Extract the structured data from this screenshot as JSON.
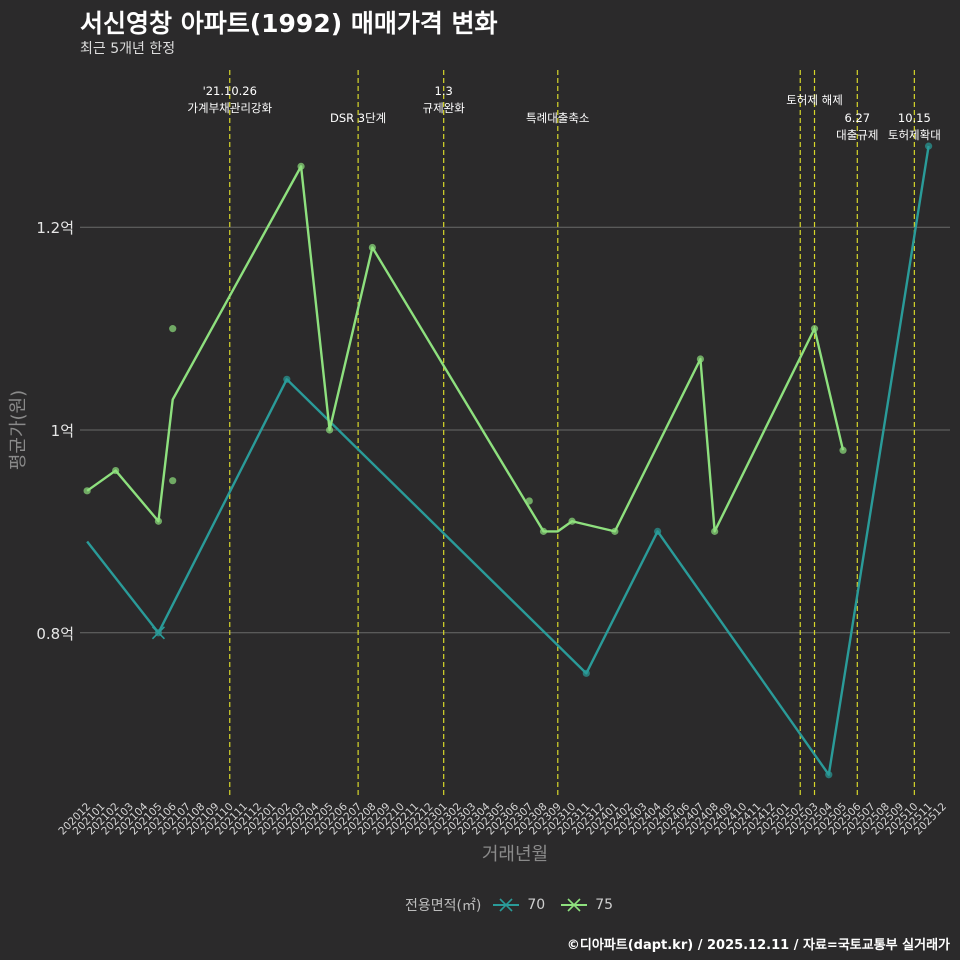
{
  "chart_data": {
    "type": "line",
    "title": "서신영창 아파트(1992) 매매가격 변화",
    "subtitle": "최근 5개년 한정",
    "xlabel": "거래년월",
    "ylabel": "평균가(원)",
    "caption": "©디아파트(dapt.kr) / 2025.12.11 / 자료=국토교통부 실거래가",
    "legend_title": "전용면적(㎡)",
    "legend_position": "bottom",
    "ylim": [
      0.64,
      1.36
    ],
    "y_ticks": [
      {
        "value": 0.8,
        "label": "0.8억"
      },
      {
        "value": 1.0,
        "label": "1억"
      },
      {
        "value": 1.2,
        "label": "1.2억"
      }
    ],
    "x_categories": [
      "202012",
      "202101",
      "202102",
      "202103",
      "202104",
      "202105",
      "202106",
      "202107",
      "202108",
      "202109",
      "202110",
      "202111",
      "202112",
      "202201",
      "202202",
      "202203",
      "202204",
      "202205",
      "202206",
      "202207",
      "202208",
      "202209",
      "202210",
      "202211",
      "202212",
      "202301",
      "202302",
      "202303",
      "202304",
      "202305",
      "202306",
      "202307",
      "202308",
      "202309",
      "202310",
      "202311",
      "202312",
      "202401",
      "202402",
      "202403",
      "202404",
      "202405",
      "202406",
      "202407",
      "202408",
      "202409",
      "202410",
      "202411",
      "202412",
      "202501",
      "202502",
      "202503",
      "202504",
      "202505",
      "202506",
      "202507",
      "202508",
      "202509",
      "202510",
      "202511",
      "202512"
    ],
    "series": [
      {
        "name": "70",
        "color": "#2a9b99",
        "line": [
          {
            "x": "202012",
            "y": 0.89
          },
          {
            "x": "202105",
            "y": 0.8
          },
          {
            "x": "202202",
            "y": 1.05
          },
          {
            "x": "202311",
            "y": 0.76
          },
          {
            "x": "202404",
            "y": 0.9
          },
          {
            "x": "202504",
            "y": 0.66
          },
          {
            "x": "202511",
            "y": 1.28
          }
        ],
        "points": [
          {
            "x": "202105",
            "y": 0.8
          },
          {
            "x": "202202",
            "y": 1.05
          },
          {
            "x": "202311",
            "y": 0.76
          },
          {
            "x": "202404",
            "y": 0.9
          },
          {
            "x": "202504",
            "y": 0.66
          },
          {
            "x": "202511",
            "y": 1.28
          }
        ]
      },
      {
        "name": "75",
        "color": "#8ee07e",
        "line": [
          {
            "x": "202012",
            "y": 0.94
          },
          {
            "x": "202102",
            "y": 0.96
          },
          {
            "x": "202105",
            "y": 0.91
          },
          {
            "x": "202106",
            "y": 1.03
          },
          {
            "x": "202203",
            "y": 1.26
          },
          {
            "x": "202205",
            "y": 1.0
          },
          {
            "x": "202208",
            "y": 1.18
          },
          {
            "x": "202308",
            "y": 0.9
          },
          {
            "x": "202309",
            "y": 0.9
          },
          {
            "x": "202310",
            "y": 0.91
          },
          {
            "x": "202401",
            "y": 0.9
          },
          {
            "x": "202407",
            "y": 1.07
          },
          {
            "x": "202408",
            "y": 0.9
          },
          {
            "x": "202503",
            "y": 1.1
          },
          {
            "x": "202505",
            "y": 0.98
          }
        ],
        "points": [
          {
            "x": "202012",
            "y": 0.94
          },
          {
            "x": "202102",
            "y": 0.96
          },
          {
            "x": "202105",
            "y": 0.91
          },
          {
            "x": "202106",
            "y": 1.1
          },
          {
            "x": "202106",
            "y": 0.95
          },
          {
            "x": "202203",
            "y": 1.26
          },
          {
            "x": "202205",
            "y": 1.0
          },
          {
            "x": "202208",
            "y": 1.18
          },
          {
            "x": "202307",
            "y": 0.93
          },
          {
            "x": "202308",
            "y": 0.9
          },
          {
            "x": "202310",
            "y": 0.91
          },
          {
            "x": "202401",
            "y": 0.9
          },
          {
            "x": "202407",
            "y": 1.07
          },
          {
            "x": "202408",
            "y": 0.9
          },
          {
            "x": "202503",
            "y": 1.1
          },
          {
            "x": "202505",
            "y": 0.98
          }
        ]
      }
    ],
    "annotations": [
      {
        "x": "202110",
        "lines": [
          "'21.10.26",
          "가계부채관리강화"
        ],
        "row": "top"
      },
      {
        "x": "202207",
        "lines": [
          "DSR 3단계"
        ],
        "row": "low"
      },
      {
        "x": "202301",
        "lines": [
          "1.3",
          "규제완화"
        ],
        "row": "top"
      },
      {
        "x": "202309",
        "lines": [
          "특례대출축소"
        ],
        "row": "low"
      },
      {
        "x": "202502",
        "lines": [],
        "row": "none"
      },
      {
        "x": "202503",
        "lines": [
          "토허제 해제"
        ],
        "row": "mid"
      },
      {
        "x": "202506",
        "lines": [
          "6.27",
          "대출규제"
        ],
        "row": "low"
      },
      {
        "x": "202510",
        "lines": [
          "10.15",
          "토허제확대"
        ],
        "row": "low"
      }
    ]
  }
}
